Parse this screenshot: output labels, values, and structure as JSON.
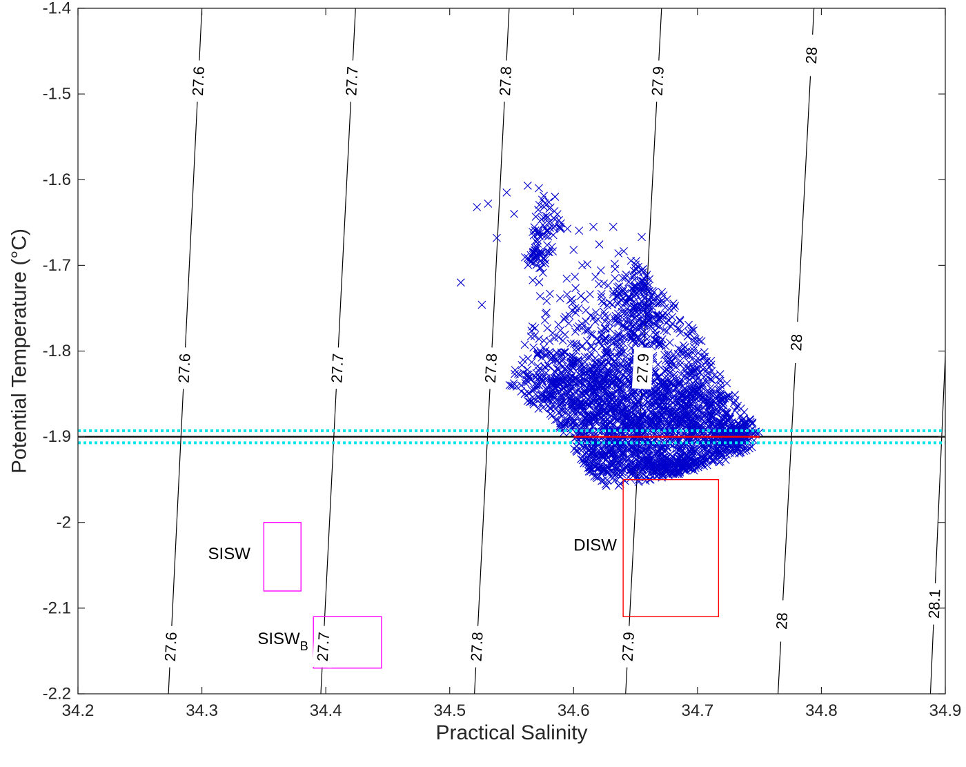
{
  "chart_data": {
    "type": "scatter",
    "xlabel": "Practical Salinity",
    "ylabel": "Potential Temperature (°C)",
    "xlim": [
      34.2,
      34.9
    ],
    "ylim": [
      -2.2,
      -1.4
    ],
    "xticks": [
      {
        "value": 34.2,
        "label": "34.2"
      },
      {
        "value": 34.3,
        "label": "34.3"
      },
      {
        "value": 34.4,
        "label": "34.4"
      },
      {
        "value": 34.5,
        "label": "34.5"
      },
      {
        "value": 34.6,
        "label": "34.6"
      },
      {
        "value": 34.7,
        "label": "34.7"
      },
      {
        "value": 34.8,
        "label": "34.8"
      },
      {
        "value": 34.9,
        "label": "34.9"
      }
    ],
    "yticks": [
      {
        "value": -2.2,
        "label": "-2.2"
      },
      {
        "value": -2.1,
        "label": "-2.1"
      },
      {
        "value": -2.0,
        "label": "-2"
      },
      {
        "value": -1.9,
        "label": "-1.9"
      },
      {
        "value": -1.8,
        "label": "-1.8"
      },
      {
        "value": -1.7,
        "label": "-1.7"
      },
      {
        "value": -1.6,
        "label": "-1.6"
      },
      {
        "value": -1.5,
        "label": "-1.5"
      },
      {
        "value": -1.4,
        "label": "-1.4"
      }
    ],
    "density_contours": [
      {
        "level": "27.6",
        "points": [
          [
            34.273,
            -2.2
          ],
          [
            34.3,
            -1.4
          ]
        ],
        "labels": [
          {
            "text": "27.6",
            "y": -1.485
          },
          {
            "text": "27.6",
            "y": -1.82
          },
          {
            "text": "27.6",
            "y": -2.145
          }
        ]
      },
      {
        "level": "27.7",
        "points": [
          [
            34.396,
            -2.2
          ],
          [
            34.424,
            -1.4
          ]
        ],
        "labels": [
          {
            "text": "27.7",
            "y": -1.485
          },
          {
            "text": "27.7",
            "y": -1.82
          },
          {
            "text": "27.7",
            "y": -2.145
          }
        ]
      },
      {
        "level": "27.8",
        "points": [
          [
            34.52,
            -2.2
          ],
          [
            34.548,
            -1.4
          ]
        ],
        "labels": [
          {
            "text": "27.8",
            "y": -1.485
          },
          {
            "text": "27.8",
            "y": -1.82
          },
          {
            "text": "27.8",
            "y": -2.145
          }
        ]
      },
      {
        "level": "27.9",
        "points": [
          [
            34.642,
            -2.2
          ],
          [
            34.671,
            -1.4
          ]
        ],
        "labels": [
          {
            "text": "27.9",
            "y": -1.485
          },
          {
            "text": "27.9",
            "y": -1.82
          },
          {
            "text": "27.9",
            "y": -2.145
          }
        ]
      },
      {
        "level": "28",
        "points": [
          [
            34.765,
            -2.2
          ],
          [
            34.794,
            -1.4
          ]
        ],
        "labels": [
          {
            "text": "28",
            "y": -1.455
          },
          {
            "text": "28",
            "y": -1.79
          },
          {
            "text": "28",
            "y": -2.115
          }
        ]
      },
      {
        "level": "28.1",
        "points": [
          [
            34.888,
            -2.2
          ],
          [
            34.9,
            -1.805
          ]
        ],
        "labels": [
          {
            "text": "28.1",
            "y": -2.095
          }
        ]
      }
    ],
    "reference_lines": {
      "freezing_point": {
        "y": -1.9,
        "color": "#000000"
      },
      "highlight_segment": {
        "x": [
          34.6,
          34.75
        ],
        "y": -1.9,
        "color": "#ff0000"
      },
      "bounds": [
        {
          "y": -1.893,
          "color": "#00e5ee"
        },
        {
          "y": -1.907,
          "color": "#00e5ee"
        }
      ]
    },
    "regions": [
      {
        "label": "SISW",
        "subscript": "",
        "x": [
          34.35,
          34.38
        ],
        "y": [
          -2.08,
          -2.0
        ],
        "color": "#ff00ff",
        "label_x": 34.305,
        "label_y": -2.043
      },
      {
        "label": "SISW",
        "subscript": "B",
        "x": [
          34.39,
          34.445
        ],
        "y": [
          -2.17,
          -2.11
        ],
        "color": "#ff00ff",
        "label_x": 34.345,
        "label_y": -2.142
      },
      {
        "label": "DISW",
        "subscript": "",
        "x": [
          34.64,
          34.717
        ],
        "y": [
          -2.11,
          -1.95
        ],
        "color": "#ff0000",
        "label_x": 34.6,
        "label_y": -2.033
      }
    ],
    "scatter": {
      "marker": "x",
      "color": "#0000cc",
      "outliers": [
        [
          34.509,
          -1.72
        ],
        [
          34.526,
          -1.746
        ],
        [
          34.538,
          -1.668
        ],
        [
          34.522,
          -1.632
        ],
        [
          34.531,
          -1.628
        ],
        [
          34.58,
          -1.65
        ],
        [
          34.6,
          -1.682
        ],
        [
          34.616,
          -1.655
        ],
        [
          34.632,
          -1.655
        ],
        [
          34.572,
          -1.61
        ],
        [
          34.552,
          -1.64
        ],
        [
          34.563,
          -1.607
        ],
        [
          34.546,
          -1.615
        ],
        [
          34.585,
          -1.62
        ],
        [
          34.655,
          -1.667
        ],
        [
          34.67,
          -1.743
        ],
        [
          34.686,
          -1.765
        ],
        [
          34.692,
          -1.783
        ],
        [
          34.66,
          -1.725
        ]
      ],
      "clusters": [
        {
          "cx": 34.625,
          "cy": -1.815,
          "sx": 0.035,
          "sy": 0.055,
          "n": 520
        },
        {
          "cx": 34.67,
          "cy": -1.885,
          "sx": 0.04,
          "sy": 0.03,
          "n": 900
        },
        {
          "cx": 34.6,
          "cy": -1.845,
          "sx": 0.03,
          "sy": 0.025,
          "n": 380
        },
        {
          "cx": 34.655,
          "cy": -1.745,
          "sx": 0.012,
          "sy": 0.04,
          "n": 220
        },
        {
          "cx": 34.62,
          "cy": -1.925,
          "sx": 0.015,
          "sy": 0.02,
          "n": 160
        },
        {
          "cx": 34.73,
          "cy": -1.9,
          "sx": 0.012,
          "sy": 0.01,
          "n": 200
        },
        {
          "cx": 34.575,
          "cy": -1.645,
          "sx": 0.012,
          "sy": 0.02,
          "n": 50
        },
        {
          "cx": 34.57,
          "cy": -1.69,
          "sx": 0.006,
          "sy": 0.006,
          "n": 45
        },
        {
          "cx": 34.7,
          "cy": -1.85,
          "sx": 0.02,
          "sy": 0.04,
          "n": 260
        },
        {
          "cx": 34.68,
          "cy": -1.935,
          "sx": 0.03,
          "sy": 0.008,
          "n": 260
        }
      ],
      "envelope": [
        [
          34.548,
          -1.84
        ],
        [
          34.566,
          -1.77
        ],
        [
          34.56,
          -1.69
        ],
        [
          34.575,
          -1.615
        ],
        [
          34.59,
          -1.64
        ],
        [
          34.62,
          -1.66
        ],
        [
          34.648,
          -1.69
        ],
        [
          34.67,
          -1.725
        ],
        [
          34.7,
          -1.78
        ],
        [
          34.75,
          -1.895
        ],
        [
          34.745,
          -1.915
        ],
        [
          34.7,
          -1.94
        ],
        [
          34.68,
          -1.945
        ],
        [
          34.62,
          -1.965
        ],
        [
          34.595,
          -1.9
        ]
      ]
    }
  }
}
